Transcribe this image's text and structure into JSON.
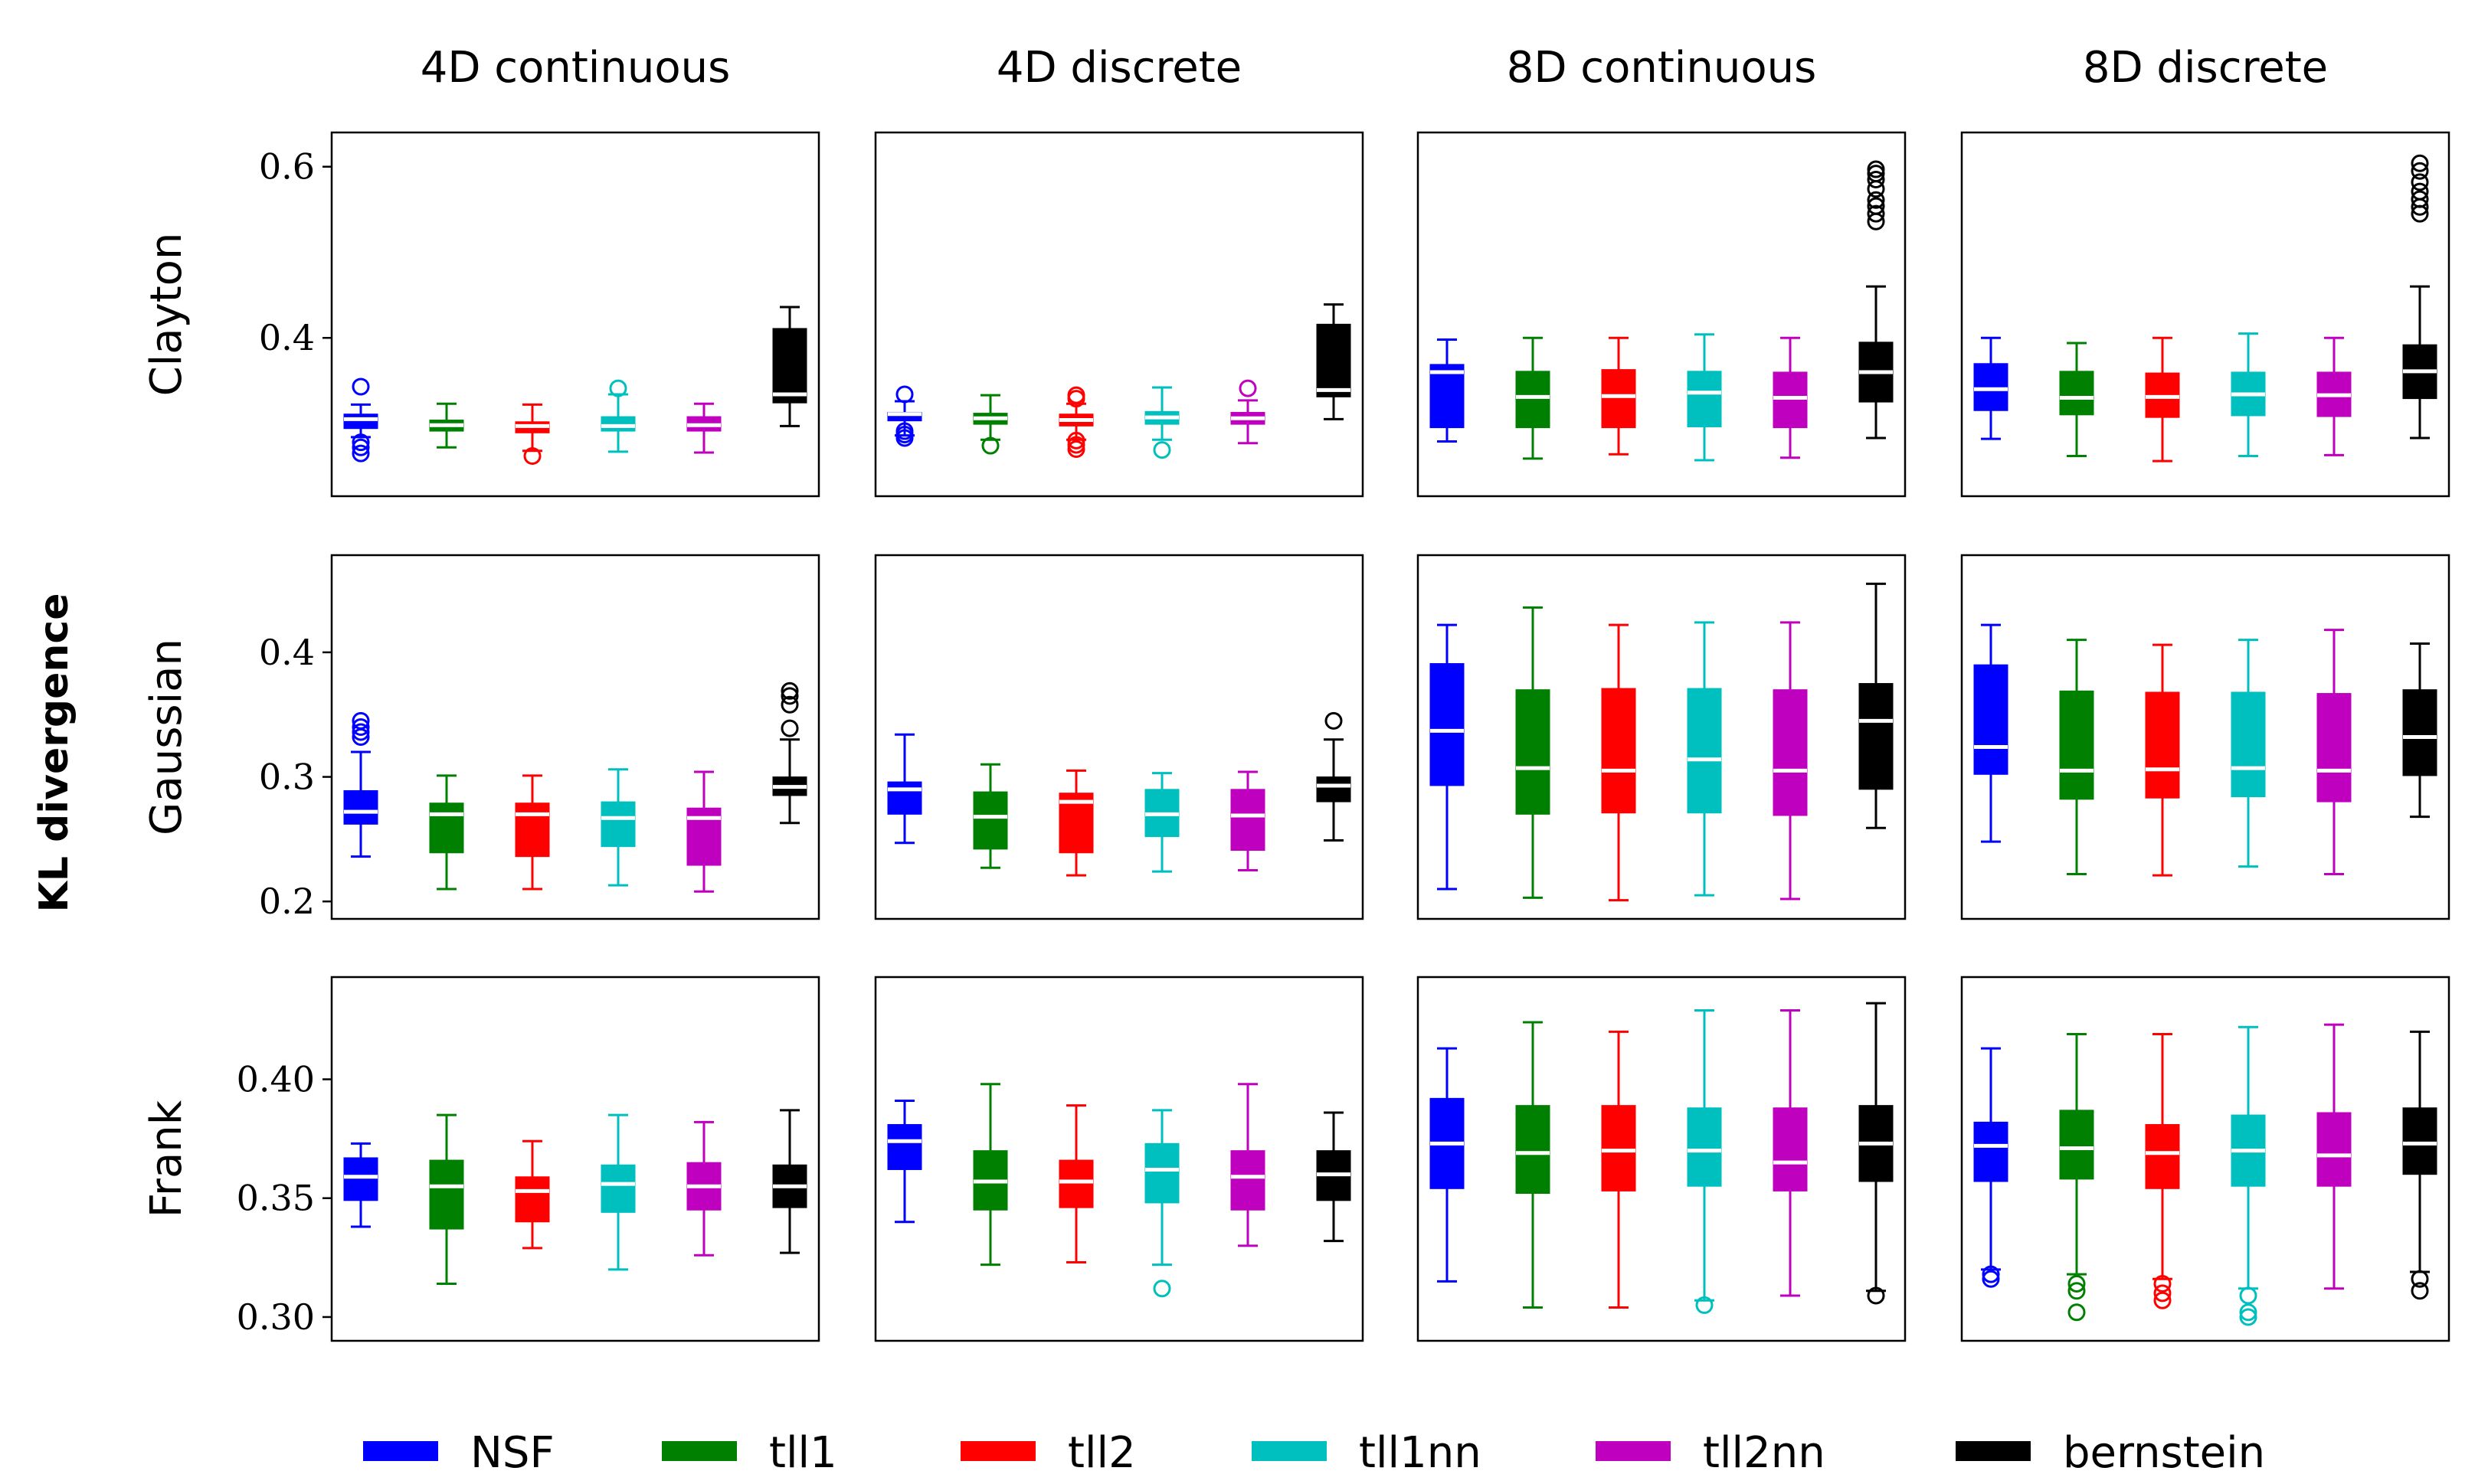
{
  "chart_data": {
    "type": "box",
    "ylabel": "KL divergence",
    "columns": [
      "4D continuous",
      "4D discrete",
      "8D continuous",
      "8D discrete"
    ],
    "rows": [
      {
        "name": "Clayton",
        "yticks": [
          0.4,
          0.6
        ],
        "tick_labels": [
          "0.4",
          "0.6"
        ],
        "ylim": [
          0.215,
          0.64
        ]
      },
      {
        "name": "Gaussian",
        "yticks": [
          0.2,
          0.3,
          0.4
        ],
        "tick_labels": [
          "0.2",
          "0.3",
          "0.4"
        ],
        "ylim": [
          0.186,
          0.478
        ]
      },
      {
        "name": "Frank",
        "yticks": [
          0.3,
          0.35,
          0.4
        ],
        "tick_labels": [
          "0.30",
          "0.35",
          "0.40"
        ],
        "ylim": [
          0.29,
          0.443
        ]
      }
    ],
    "series": [
      {
        "name": "NSF",
        "color": "#0000ff"
      },
      {
        "name": "tll1",
        "color": "#008000"
      },
      {
        "name": "tll2",
        "color": "#ff0000"
      },
      {
        "name": "tll1nn",
        "color": "#00bfbf"
      },
      {
        "name": "tll2nn",
        "color": "#bf00bf"
      },
      {
        "name": "bernstein",
        "color": "#000000"
      }
    ],
    "panels": [
      [
        [
          {
            "whislo": 0.284,
            "q1": 0.294,
            "med": 0.305,
            "q3": 0.311,
            "whishi": 0.322,
            "fliers": [
              0.343,
              0.278,
              0.272,
              0.265
            ]
          },
          {
            "whislo": 0.272,
            "q1": 0.291,
            "med": 0.298,
            "q3": 0.304,
            "whishi": 0.323,
            "fliers": []
          },
          {
            "whislo": 0.268,
            "q1": 0.289,
            "med": 0.297,
            "q3": 0.302,
            "whishi": 0.322,
            "fliers": [
              0.262
            ]
          },
          {
            "whislo": 0.267,
            "q1": 0.291,
            "med": 0.297,
            "q3": 0.308,
            "whishi": 0.334,
            "fliers": [
              0.341
            ]
          },
          {
            "whislo": 0.266,
            "q1": 0.291,
            "med": 0.298,
            "q3": 0.308,
            "whishi": 0.323,
            "fliers": []
          },
          {
            "whislo": 0.297,
            "q1": 0.324,
            "med": 0.334,
            "q3": 0.411,
            "whishi": 0.436,
            "fliers": []
          }
        ],
        [
          {
            "whislo": 0.286,
            "q1": 0.303,
            "med": 0.311,
            "q3": 0.313,
            "whishi": 0.326,
            "fliers": [
              0.334,
              0.291,
              0.287,
              0.283
            ]
          },
          {
            "whislo": 0.281,
            "q1": 0.299,
            "med": 0.306,
            "q3": 0.312,
            "whishi": 0.333,
            "fliers": [
              0.274
            ]
          },
          {
            "whislo": 0.281,
            "q1": 0.297,
            "med": 0.304,
            "q3": 0.311,
            "whishi": 0.323,
            "fliers": [
              0.333,
              0.329,
              0.28,
              0.275,
              0.27
            ]
          },
          {
            "whislo": 0.281,
            "q1": 0.299,
            "med": 0.307,
            "q3": 0.314,
            "whishi": 0.342,
            "fliers": [
              0.269
            ]
          },
          {
            "whislo": 0.277,
            "q1": 0.299,
            "med": 0.306,
            "q3": 0.313,
            "whishi": 0.327,
            "fliers": [
              0.341
            ]
          },
          {
            "whislo": 0.305,
            "q1": 0.331,
            "med": 0.339,
            "q3": 0.416,
            "whishi": 0.439,
            "fliers": []
          }
        ],
        [
          {
            "whislo": 0.279,
            "q1": 0.295,
            "med": 0.36,
            "q3": 0.369,
            "whishi": 0.398,
            "fliers": []
          },
          {
            "whislo": 0.259,
            "q1": 0.295,
            "med": 0.331,
            "q3": 0.361,
            "whishi": 0.4,
            "fliers": []
          },
          {
            "whislo": 0.264,
            "q1": 0.295,
            "med": 0.332,
            "q3": 0.363,
            "whishi": 0.4,
            "fliers": []
          },
          {
            "whislo": 0.257,
            "q1": 0.296,
            "med": 0.336,
            "q3": 0.361,
            "whishi": 0.404,
            "fliers": []
          },
          {
            "whislo": 0.26,
            "q1": 0.295,
            "med": 0.33,
            "q3": 0.36,
            "whishi": 0.4,
            "fliers": []
          },
          {
            "whislo": 0.283,
            "q1": 0.325,
            "med": 0.36,
            "q3": 0.395,
            "whishi": 0.46,
            "fliers": [
              0.597,
              0.592,
              0.585,
              0.574,
              0.561,
              0.554,
              0.545,
              0.536
            ]
          }
        ],
        [
          {
            "whislo": 0.282,
            "q1": 0.315,
            "med": 0.34,
            "q3": 0.37,
            "whishi": 0.4,
            "fliers": []
          },
          {
            "whislo": 0.262,
            "q1": 0.31,
            "med": 0.33,
            "q3": 0.361,
            "whishi": 0.394,
            "fliers": []
          },
          {
            "whislo": 0.256,
            "q1": 0.307,
            "med": 0.331,
            "q3": 0.359,
            "whishi": 0.4,
            "fliers": []
          },
          {
            "whislo": 0.262,
            "q1": 0.309,
            "med": 0.334,
            "q3": 0.36,
            "whishi": 0.405,
            "fliers": []
          },
          {
            "whislo": 0.263,
            "q1": 0.308,
            "med": 0.333,
            "q3": 0.36,
            "whishi": 0.4,
            "fliers": []
          },
          {
            "whislo": 0.283,
            "q1": 0.329,
            "med": 0.361,
            "q3": 0.392,
            "whishi": 0.46,
            "fliers": [
              0.604,
              0.595,
              0.582,
              0.571,
              0.562,
              0.553,
              0.545
            ]
          }
        ]
      ],
      [
        [
          {
            "whislo": 0.236,
            "q1": 0.262,
            "med": 0.272,
            "q3": 0.289,
            "whishi": 0.32,
            "fliers": [
              0.345,
              0.34,
              0.336,
              0.332
            ]
          },
          {
            "whislo": 0.21,
            "q1": 0.239,
            "med": 0.27,
            "q3": 0.279,
            "whishi": 0.301,
            "fliers": []
          },
          {
            "whislo": 0.21,
            "q1": 0.236,
            "med": 0.27,
            "q3": 0.279,
            "whishi": 0.301,
            "fliers": []
          },
          {
            "whislo": 0.213,
            "q1": 0.244,
            "med": 0.267,
            "q3": 0.28,
            "whishi": 0.306,
            "fliers": []
          },
          {
            "whislo": 0.208,
            "q1": 0.229,
            "med": 0.267,
            "q3": 0.275,
            "whishi": 0.304,
            "fliers": []
          },
          {
            "whislo": 0.263,
            "q1": 0.285,
            "med": 0.292,
            "q3": 0.3,
            "whishi": 0.33,
            "fliers": [
              0.369,
              0.365,
              0.358,
              0.339
            ]
          }
        ],
        [
          {
            "whislo": 0.247,
            "q1": 0.27,
            "med": 0.29,
            "q3": 0.296,
            "whishi": 0.334,
            "fliers": []
          },
          {
            "whislo": 0.227,
            "q1": 0.242,
            "med": 0.268,
            "q3": 0.288,
            "whishi": 0.31,
            "fliers": []
          },
          {
            "whislo": 0.221,
            "q1": 0.239,
            "med": 0.28,
            "q3": 0.287,
            "whishi": 0.305,
            "fliers": []
          },
          {
            "whislo": 0.224,
            "q1": 0.252,
            "med": 0.27,
            "q3": 0.29,
            "whishi": 0.303,
            "fliers": []
          },
          {
            "whislo": 0.225,
            "q1": 0.241,
            "med": 0.269,
            "q3": 0.29,
            "whishi": 0.304,
            "fliers": []
          },
          {
            "whislo": 0.249,
            "q1": 0.28,
            "med": 0.293,
            "q3": 0.3,
            "whishi": 0.33,
            "fliers": [
              0.345
            ]
          }
        ],
        [
          {
            "whislo": 0.21,
            "q1": 0.293,
            "med": 0.337,
            "q3": 0.391,
            "whishi": 0.422,
            "fliers": []
          },
          {
            "whislo": 0.203,
            "q1": 0.27,
            "med": 0.307,
            "q3": 0.37,
            "whishi": 0.436,
            "fliers": []
          },
          {
            "whislo": 0.201,
            "q1": 0.271,
            "med": 0.305,
            "q3": 0.371,
            "whishi": 0.422,
            "fliers": []
          },
          {
            "whislo": 0.205,
            "q1": 0.271,
            "med": 0.314,
            "q3": 0.371,
            "whishi": 0.424,
            "fliers": []
          },
          {
            "whislo": 0.202,
            "q1": 0.269,
            "med": 0.305,
            "q3": 0.37,
            "whishi": 0.424,
            "fliers": []
          },
          {
            "whislo": 0.259,
            "q1": 0.29,
            "med": 0.345,
            "q3": 0.375,
            "whishi": 0.455,
            "fliers": []
          }
        ],
        [
          {
            "whislo": 0.248,
            "q1": 0.302,
            "med": 0.324,
            "q3": 0.39,
            "whishi": 0.422,
            "fliers": []
          },
          {
            "whislo": 0.222,
            "q1": 0.282,
            "med": 0.305,
            "q3": 0.369,
            "whishi": 0.41,
            "fliers": []
          },
          {
            "whislo": 0.221,
            "q1": 0.283,
            "med": 0.306,
            "q3": 0.368,
            "whishi": 0.406,
            "fliers": []
          },
          {
            "whislo": 0.228,
            "q1": 0.284,
            "med": 0.307,
            "q3": 0.368,
            "whishi": 0.41,
            "fliers": []
          },
          {
            "whislo": 0.222,
            "q1": 0.28,
            "med": 0.305,
            "q3": 0.367,
            "whishi": 0.418,
            "fliers": []
          },
          {
            "whislo": 0.268,
            "q1": 0.301,
            "med": 0.332,
            "q3": 0.37,
            "whishi": 0.407,
            "fliers": []
          }
        ]
      ],
      [
        [
          {
            "whislo": 0.338,
            "q1": 0.349,
            "med": 0.359,
            "q3": 0.367,
            "whishi": 0.373,
            "fliers": []
          },
          {
            "whislo": 0.314,
            "q1": 0.337,
            "med": 0.355,
            "q3": 0.366,
            "whishi": 0.385,
            "fliers": []
          },
          {
            "whislo": 0.329,
            "q1": 0.34,
            "med": 0.353,
            "q3": 0.359,
            "whishi": 0.374,
            "fliers": []
          },
          {
            "whislo": 0.32,
            "q1": 0.344,
            "med": 0.356,
            "q3": 0.364,
            "whishi": 0.385,
            "fliers": []
          },
          {
            "whislo": 0.326,
            "q1": 0.345,
            "med": 0.355,
            "q3": 0.365,
            "whishi": 0.382,
            "fliers": []
          },
          {
            "whislo": 0.327,
            "q1": 0.346,
            "med": 0.355,
            "q3": 0.364,
            "whishi": 0.387,
            "fliers": []
          }
        ],
        [
          {
            "whislo": 0.34,
            "q1": 0.362,
            "med": 0.374,
            "q3": 0.381,
            "whishi": 0.391,
            "fliers": []
          },
          {
            "whislo": 0.322,
            "q1": 0.345,
            "med": 0.357,
            "q3": 0.37,
            "whishi": 0.398,
            "fliers": []
          },
          {
            "whislo": 0.323,
            "q1": 0.346,
            "med": 0.357,
            "q3": 0.366,
            "whishi": 0.389,
            "fliers": []
          },
          {
            "whislo": 0.322,
            "q1": 0.348,
            "med": 0.362,
            "q3": 0.373,
            "whishi": 0.387,
            "fliers": [
              0.312
            ]
          },
          {
            "whislo": 0.33,
            "q1": 0.345,
            "med": 0.359,
            "q3": 0.37,
            "whishi": 0.398,
            "fliers": []
          },
          {
            "whislo": 0.332,
            "q1": 0.349,
            "med": 0.36,
            "q3": 0.37,
            "whishi": 0.386,
            "fliers": []
          }
        ],
        [
          {
            "whislo": 0.315,
            "q1": 0.354,
            "med": 0.373,
            "q3": 0.392,
            "whishi": 0.413,
            "fliers": []
          },
          {
            "whislo": 0.304,
            "q1": 0.352,
            "med": 0.369,
            "q3": 0.389,
            "whishi": 0.424,
            "fliers": []
          },
          {
            "whislo": 0.304,
            "q1": 0.353,
            "med": 0.37,
            "q3": 0.389,
            "whishi": 0.42,
            "fliers": []
          },
          {
            "whislo": 0.307,
            "q1": 0.355,
            "med": 0.37,
            "q3": 0.388,
            "whishi": 0.429,
            "fliers": [
              0.305
            ]
          },
          {
            "whislo": 0.309,
            "q1": 0.353,
            "med": 0.365,
            "q3": 0.388,
            "whishi": 0.429,
            "fliers": []
          },
          {
            "whislo": 0.311,
            "q1": 0.357,
            "med": 0.373,
            "q3": 0.389,
            "whishi": 0.432,
            "fliers": [
              0.309
            ]
          }
        ],
        [
          {
            "whislo": 0.32,
            "q1": 0.357,
            "med": 0.372,
            "q3": 0.382,
            "whishi": 0.413,
            "fliers": [
              0.318,
              0.316
            ]
          },
          {
            "whislo": 0.318,
            "q1": 0.358,
            "med": 0.371,
            "q3": 0.387,
            "whishi": 0.419,
            "fliers": [
              0.314,
              0.311,
              0.302
            ]
          },
          {
            "whislo": 0.316,
            "q1": 0.354,
            "med": 0.369,
            "q3": 0.381,
            "whishi": 0.419,
            "fliers": [
              0.314,
              0.31,
              0.307
            ]
          },
          {
            "whislo": 0.312,
            "q1": 0.355,
            "med": 0.37,
            "q3": 0.385,
            "whishi": 0.422,
            "fliers": [
              0.309,
              0.302,
              0.3
            ]
          },
          {
            "whislo": 0.312,
            "q1": 0.355,
            "med": 0.368,
            "q3": 0.386,
            "whishi": 0.423,
            "fliers": []
          },
          {
            "whislo": 0.319,
            "q1": 0.36,
            "med": 0.373,
            "q3": 0.388,
            "whishi": 0.42,
            "fliers": [
              0.316,
              0.311
            ]
          }
        ]
      ]
    ]
  }
}
